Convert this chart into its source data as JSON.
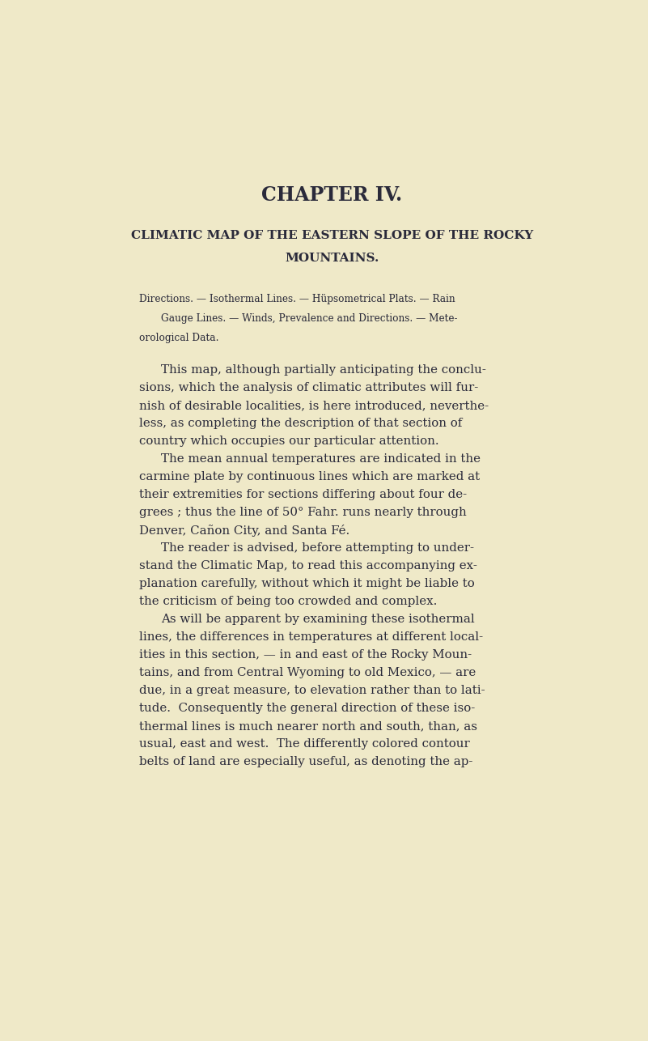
{
  "bg_color": "#EFE9C8",
  "text_color": "#2a2a3a",
  "page_width": 8.01,
  "page_height": 12.86,
  "chapter_title": "CHAPTER IV.",
  "section_title_line1": "CLIMATIC MAP OF THE EASTERN SLOPE OF THE ROCKY",
  "section_title_line2": "MOUNTAINS.",
  "subhead_line1": "Directions. — Isothermal Lines. — Hüpsometrical Plats. — Rain",
  "subhead_line2": "Gauge Lines. — Winds, Prevalence and Directions. — Mete-",
  "subhead_line3": "orological Data.",
  "paragraphs": [
    [
      "This map, although partially anticipating the conclu-",
      "sions, which the analysis of climatic attributes will fur-",
      "nish of desirable localities, is here introduced, neverthe-",
      "less, as completing the description of that section of",
      "country which occupies our particular attention."
    ],
    [
      "The mean annual temperatures are indicated in the",
      "carmine plate by continuous lines which are marked at",
      "their extremities for sections differing about four de-",
      "grees ; thus the line of 50° Fahr. runs nearly through",
      "Denver, Cañon City, and Santa Fé."
    ],
    [
      "The reader is advised, before attempting to under-",
      "stand the Climatic Map, to read this accompanying ex-",
      "planation carefully, without which it might be liable to",
      "the criticism of being too crowded and complex."
    ],
    [
      "As will be apparent by examining these isothermal",
      "lines, the differences in temperatures at different local-",
      "ities in this section, — in and east of the Rocky Moun-",
      "tains, and from Central Wyoming to old Mexico, — are",
      "due, in a great measure, to elevation rather than to lati-",
      "tude.  Consequently the general direction of these iso-",
      "thermal lines is much nearer north and south, than, as",
      "usual, east and west.  The differently colored contour",
      "belts of land are especially useful, as denoting the ap-"
    ]
  ]
}
